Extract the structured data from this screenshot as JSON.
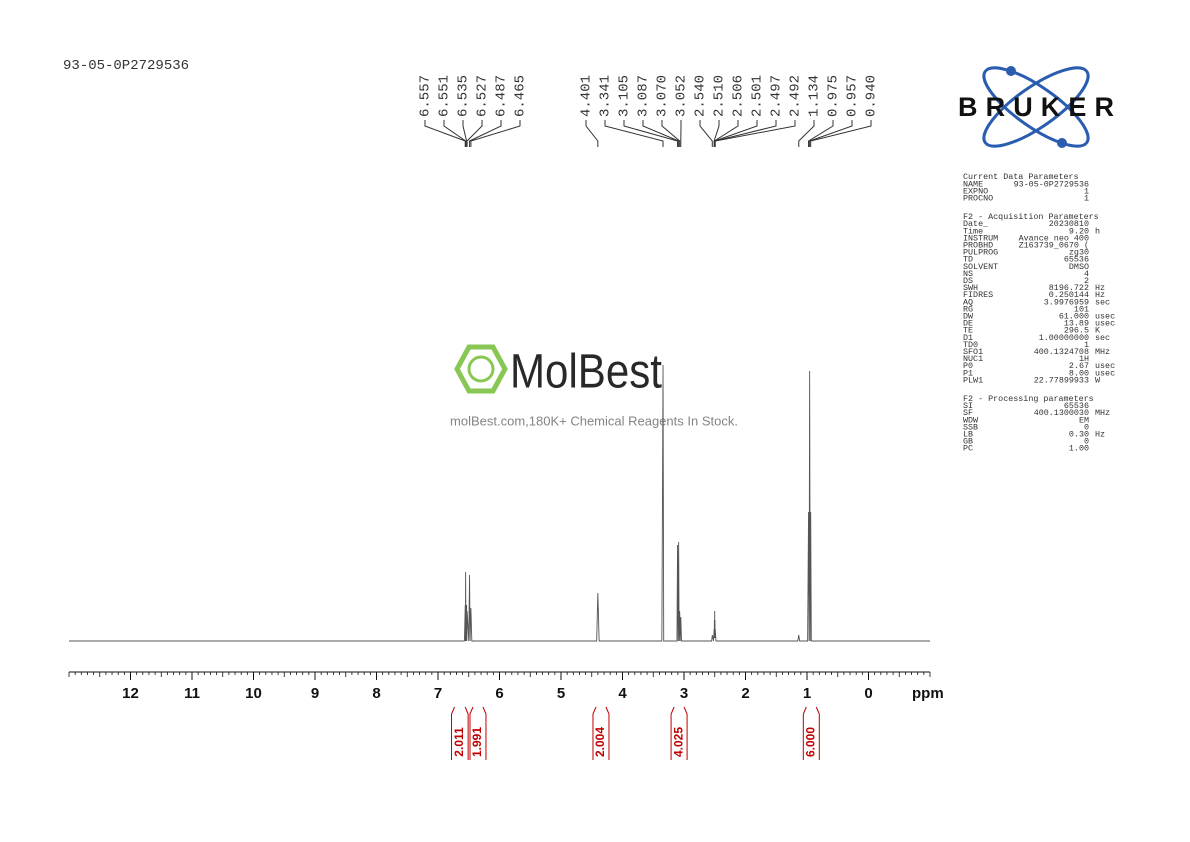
{
  "sample_id": "93-05-0P2729536",
  "watermark": {
    "brand": "MolBest",
    "tagline": "molBest.com,180K+ Chemical Reagents In Stock."
  },
  "logo": "BRUKER",
  "chart_data": {
    "type": "line",
    "color": "#555555",
    "xlim": [
      13,
      -1
    ],
    "ylim": [
      0,
      100
    ],
    "xticks": [
      12,
      11,
      10,
      9,
      8,
      7,
      6,
      5,
      4,
      3,
      2,
      1,
      0
    ],
    "xlabel": "ppm",
    "x": [
      13,
      6.57,
      6.557,
      6.554,
      6.551,
      6.545,
      6.535,
      6.531,
      6.527,
      6.5,
      6.487,
      6.478,
      6.465,
      6.45,
      4.42,
      4.401,
      4.38,
      3.36,
      3.341,
      3.33,
      3.115,
      3.105,
      3.096,
      3.087,
      3.079,
      3.07,
      3.061,
      3.052,
      3.04,
      2.55,
      2.54,
      2.52,
      2.51,
      2.508,
      2.506,
      2.503,
      2.501,
      2.499,
      2.497,
      2.494,
      2.492,
      2.48,
      1.15,
      1.134,
      1.12,
      0.99,
      0.975,
      0.966,
      0.957,
      0.948,
      0.94,
      0.93,
      -1
    ],
    "values": [
      0,
      0,
      12,
      0,
      23,
      0,
      12,
      0,
      10,
      0,
      22,
      0,
      11,
      0,
      0,
      16,
      0,
      0,
      92,
      0,
      0,
      32,
      0,
      33,
      0,
      10,
      0,
      8,
      0,
      0,
      2,
      0,
      4,
      1,
      7,
      2,
      10,
      2,
      7,
      1,
      4,
      0,
      0,
      2,
      0,
      0,
      43,
      0,
      90,
      0,
      43,
      0,
      0
    ],
    "peak_groups": [
      [
        {
          "value": 6.557,
          "label": "6.557"
        },
        {
          "value": 6.551,
          "label": "6.551"
        },
        {
          "value": 6.535,
          "label": "6.535"
        },
        {
          "value": 6.527,
          "label": "6.527"
        },
        {
          "value": 6.487,
          "label": "6.487"
        },
        {
          "value": 6.465,
          "label": "6.465"
        }
      ],
      [
        {
          "value": 4.401,
          "label": "4.401"
        },
        {
          "value": 3.341,
          "label": "3.341"
        },
        {
          "value": 3.105,
          "label": "3.105"
        },
        {
          "value": 3.087,
          "label": "3.087"
        },
        {
          "value": 3.07,
          "label": "3.070"
        },
        {
          "value": 3.052,
          "label": "3.052"
        },
        {
          "value": 2.54,
          "label": "2.540"
        },
        {
          "value": 2.51,
          "label": "2.510"
        },
        {
          "value": 2.506,
          "label": "2.506"
        },
        {
          "value": 2.501,
          "label": "2.501"
        },
        {
          "value": 2.497,
          "label": "2.497"
        },
        {
          "value": 2.492,
          "label": "2.492"
        },
        {
          "value": 1.134,
          "label": "1.134"
        },
        {
          "value": 0.975,
          "label": "0.975"
        },
        {
          "value": 0.957,
          "label": "0.957"
        },
        {
          "value": 0.94,
          "label": "0.940"
        }
      ]
    ],
    "integrals": [
      {
        "value": 2.011,
        "label": "2.011",
        "range": [
          6.78,
          6.51
        ]
      },
      {
        "value": 1.991,
        "label": "1.991",
        "range": [
          6.48,
          6.22
        ]
      },
      {
        "value": 2.004,
        "label": "2.004",
        "range": [
          4.48,
          4.22
        ]
      },
      {
        "value": 4.025,
        "label": "4.025",
        "range": [
          3.21,
          2.95
        ]
      },
      {
        "value": 6,
        "label": "6.000",
        "range": [
          1.06,
          0.8
        ]
      }
    ]
  },
  "parameters": [
    {
      "title": "Current Data Parameters",
      "rows": [
        [
          "NAME",
          "93-05-0P2729536",
          ""
        ],
        [
          "EXPNO",
          "1",
          ""
        ],
        [
          "PROCNO",
          "1",
          ""
        ]
      ]
    },
    {
      "title": "F2 - Acquisition Parameters",
      "rows": [
        [
          "Date_",
          "20230810",
          ""
        ],
        [
          "Time",
          "9.20",
          "h"
        ],
        [
          "INSTRUM",
          "Avance neo 400",
          ""
        ],
        [
          "PROBHD",
          "Z163739_0670 (",
          ""
        ],
        [
          "PULPROG",
          "zg30",
          ""
        ],
        [
          "TD",
          "65536",
          ""
        ],
        [
          "SOLVENT",
          "DMSO",
          ""
        ],
        [
          "NS",
          "4",
          ""
        ],
        [
          "DS",
          "2",
          ""
        ],
        [
          "SWH",
          "8196.722",
          "Hz"
        ],
        [
          "FIDRES",
          "0.250144",
          "Hz"
        ],
        [
          "AQ",
          "3.9976959",
          "sec"
        ],
        [
          "RG",
          "101",
          ""
        ],
        [
          "DW",
          "61.000",
          "usec"
        ],
        [
          "DE",
          "13.89",
          "usec"
        ],
        [
          "TE",
          "296.5",
          "K"
        ],
        [
          "D1",
          "1.00000000",
          "sec"
        ],
        [
          "TD0",
          "1",
          ""
        ],
        [
          "SFO1",
          "400.1324708",
          "MHz"
        ],
        [
          "NUC1",
          "1H",
          ""
        ],
        [
          "P0",
          "2.67",
          "usec"
        ],
        [
          "P1",
          "8.00",
          "usec"
        ],
        [
          "PLW1",
          "22.77899933",
          "W"
        ]
      ]
    },
    {
      "title": "F2 - Processing parameters",
      "rows": [
        [
          "SI",
          "65536",
          ""
        ],
        [
          "SF",
          "400.1300030",
          "MHz"
        ],
        [
          "WDW",
          "EM",
          ""
        ],
        [
          "SSB",
          "0",
          ""
        ],
        [
          "LB",
          "0.30",
          "Hz"
        ],
        [
          "GB",
          "0",
          ""
        ],
        [
          "PC",
          "1.00",
          ""
        ]
      ]
    }
  ]
}
